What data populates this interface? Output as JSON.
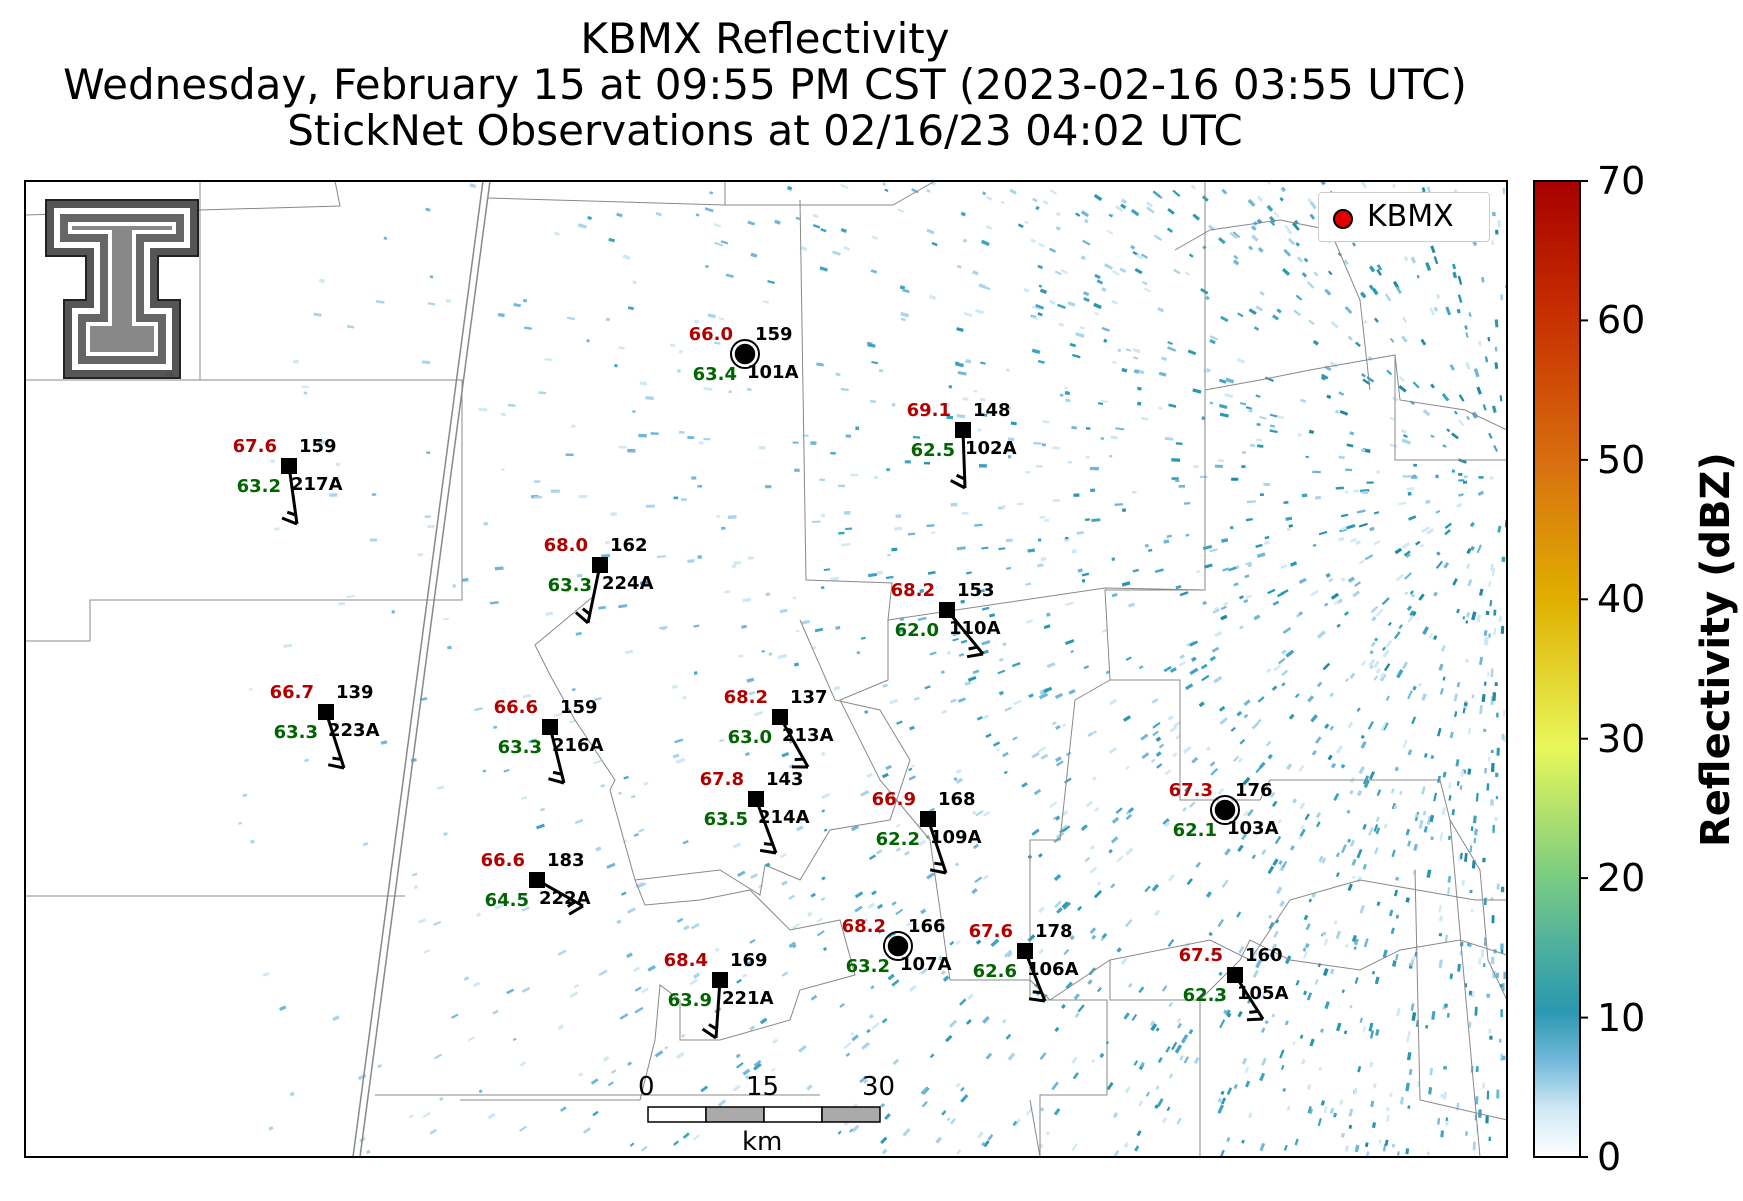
{
  "title": {
    "line1": "KBMX Reflectivity",
    "line2": "Wednesday, February 15 at 09:55 PM CST (2023-02-16 03:55 UTC)",
    "line3": "StickNet Observations at 02/16/23 04:02 UTC"
  },
  "legend": {
    "label": "KBMX"
  },
  "colorbar": {
    "title": "Reflectivity (dBZ)",
    "ticks": [
      "0",
      "10",
      "20",
      "30",
      "40",
      "50",
      "60",
      "70"
    ]
  },
  "scale_bar": {
    "labels": [
      "0",
      "15",
      "30"
    ],
    "unit": "km"
  },
  "stations": [
    {
      "id": "101A",
      "temp": "66.0",
      "dew": "63.4",
      "pres": "159",
      "marker": "circle"
    },
    {
      "id": "102A",
      "temp": "69.1",
      "dew": "62.5",
      "pres": "148",
      "marker": "square"
    },
    {
      "id": "217A",
      "temp": "67.6",
      "dew": "63.2",
      "pres": "159",
      "marker": "square"
    },
    {
      "id": "224A",
      "temp": "68.0",
      "dew": "63.3",
      "pres": "162",
      "marker": "square"
    },
    {
      "id": "110A",
      "temp": "68.2",
      "dew": "62.0",
      "pres": "153",
      "marker": "square"
    },
    {
      "id": "223A",
      "temp": "66.7",
      "dew": "63.3",
      "pres": "139",
      "marker": "square"
    },
    {
      "id": "216A",
      "temp": "66.6",
      "dew": "63.3",
      "pres": "159",
      "marker": "square"
    },
    {
      "id": "213A",
      "temp": "68.2",
      "dew": "63.0",
      "pres": "137",
      "marker": "square"
    },
    {
      "id": "214A",
      "temp": "67.8",
      "dew": "63.5",
      "pres": "143",
      "marker": "square"
    },
    {
      "id": "109A",
      "temp": "66.9",
      "dew": "62.2",
      "pres": "168",
      "marker": "square"
    },
    {
      "id": "103A",
      "temp": "67.3",
      "dew": "62.1",
      "pres": "176",
      "marker": "circle"
    },
    {
      "id": "222A",
      "temp": "66.6",
      "dew": "64.5",
      "pres": "183",
      "marker": "square"
    },
    {
      "id": "107A",
      "temp": "68.2",
      "dew": "63.2",
      "pres": "166",
      "marker": "circle"
    },
    {
      "id": "106A",
      "temp": "67.6",
      "dew": "62.6",
      "pres": "178",
      "marker": "square"
    },
    {
      "id": "221A",
      "temp": "68.4",
      "dew": "63.9",
      "pres": "169",
      "marker": "square"
    },
    {
      "id": "105A",
      "temp": "67.5",
      "dew": "62.3",
      "pres": "160",
      "marker": "square"
    }
  ],
  "colors": {
    "temp": "#b00000",
    "dew": "#006400",
    "pres": "#000000",
    "radar_marker": "#e00000"
  }
}
